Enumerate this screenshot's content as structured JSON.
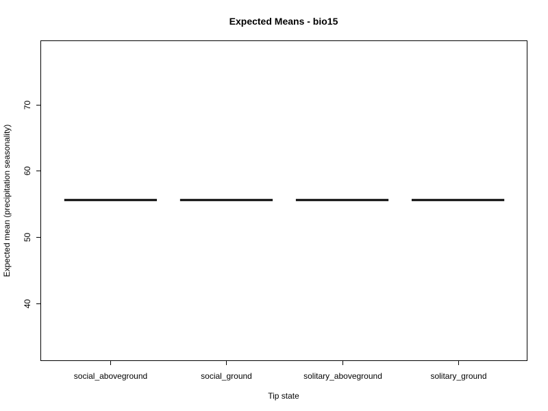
{
  "chart_data": {
    "type": "bar",
    "title": "Expected Means - bio15",
    "xlabel": "Tip state",
    "ylabel": "Expected mean (precipitation seasonality)",
    "categories": [
      "social_aboveground",
      "social_ground",
      "solitary_aboveground",
      "solitary_ground"
    ],
    "values": [
      55.6,
      55.6,
      55.6,
      55.6
    ],
    "ylim": [
      31.4,
      79.6
    ],
    "yticks": [
      40,
      50,
      60,
      70
    ],
    "grid": false,
    "legend": "none",
    "colors": {
      "mark": "#000000",
      "axis": "#000000",
      "background": "#ffffff"
    }
  }
}
